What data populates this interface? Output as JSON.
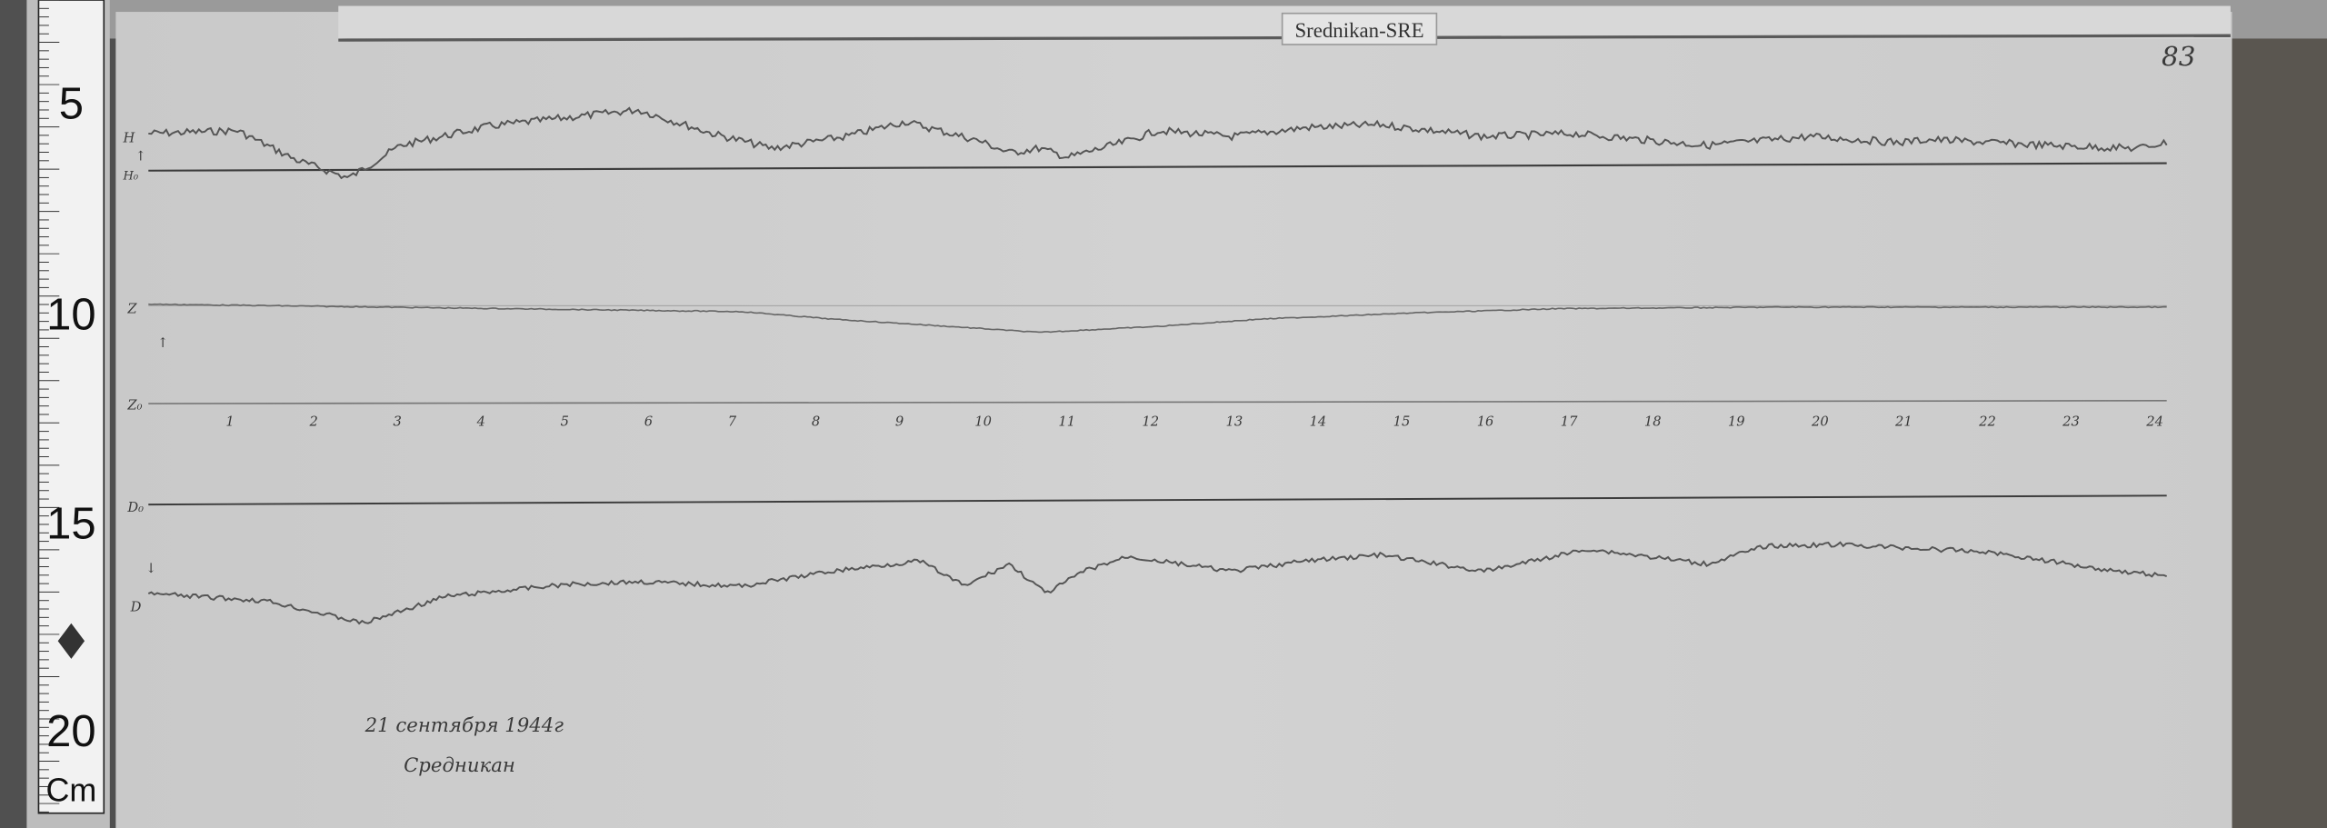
{
  "label_tag": "Srednikan-SRE",
  "sheet_number": "83",
  "ruler": {
    "marks": [
      "5",
      "10",
      "15",
      "20"
    ],
    "unit": "Cm"
  },
  "trace_labels": {
    "h": "H",
    "h0": "H₀",
    "z": "Z",
    "z0": "Z₀",
    "d0": "D₀",
    "d": "D"
  },
  "hour_labels": [
    "1",
    "2",
    "3",
    "4",
    "5",
    "6",
    "7",
    "8",
    "9",
    "10",
    "11",
    "12",
    "13",
    "14",
    "15",
    "16",
    "17",
    "18",
    "19",
    "20",
    "21",
    "22",
    "23",
    "24"
  ],
  "annotation": {
    "date": "21 сентября 1944г",
    "station": "Средникан"
  },
  "colors": {
    "paper": "#cdcdcd",
    "trace": "#555555",
    "baseline": "#3c3c3c",
    "background": "#4a4a4a"
  }
}
